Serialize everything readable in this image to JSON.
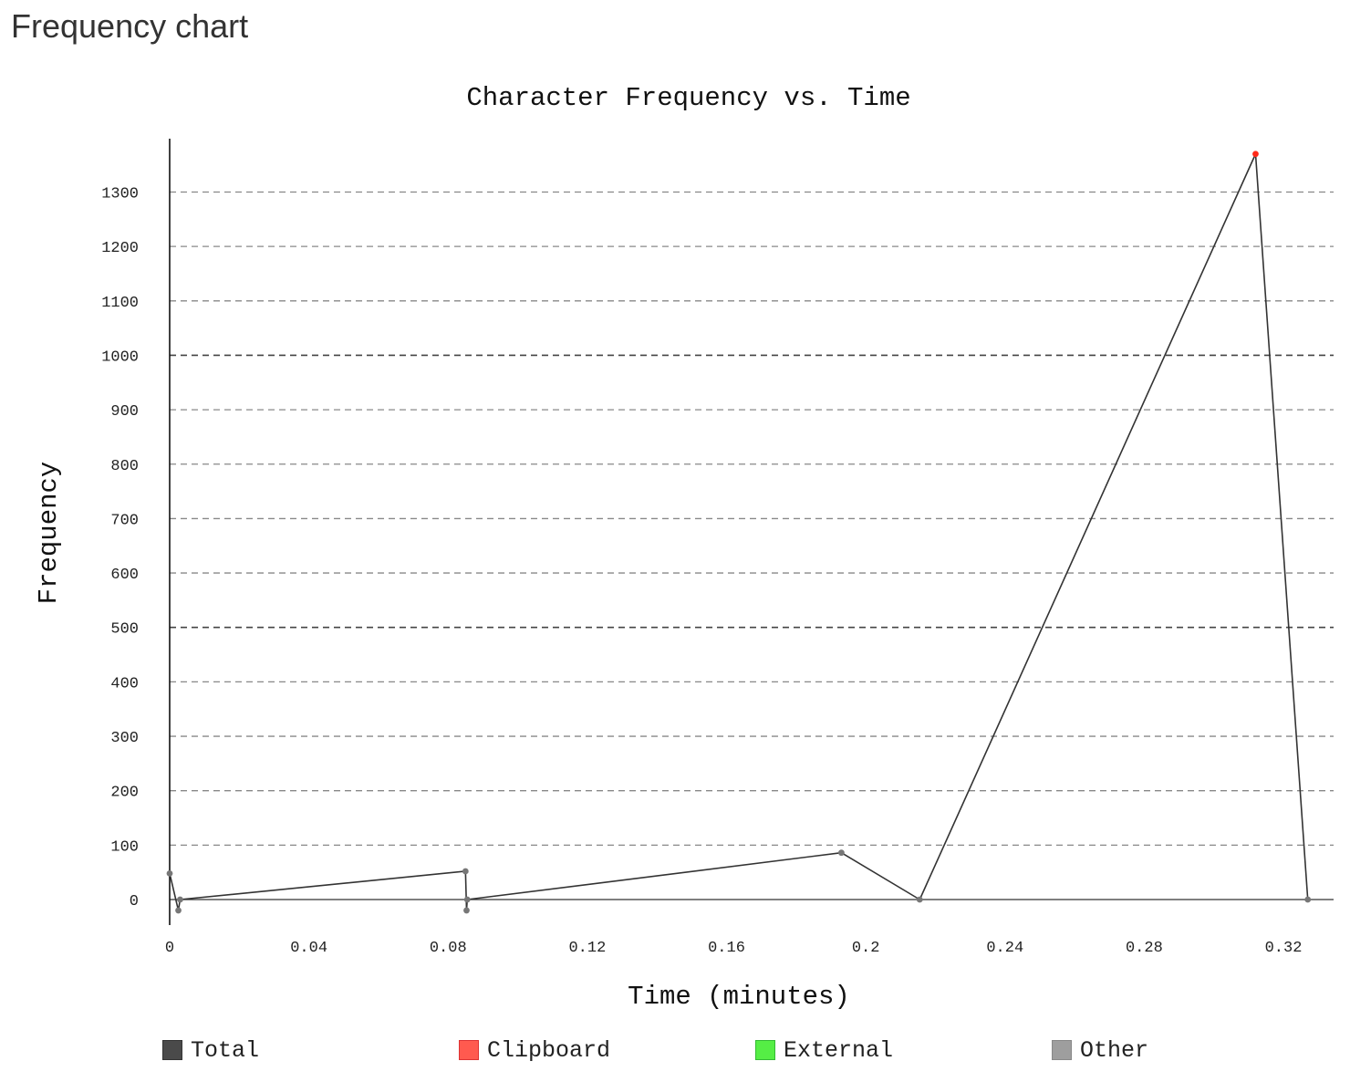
{
  "page": {
    "heading": "Frequency chart"
  },
  "chart_data": {
    "type": "line",
    "title": "Character Frequency vs. Time",
    "xlabel": "Time (minutes)",
    "ylabel": "Frequency",
    "xlim": [
      0,
      0.333
    ],
    "ylim": [
      -47,
      1400
    ],
    "x_ticks": [
      "0",
      "0.04",
      "0.08",
      "0.12",
      "0.16",
      "0.2",
      "0.24",
      "0.28",
      "0.32"
    ],
    "y_ticks": [
      "0",
      "100",
      "200",
      "300",
      "400",
      "500",
      "600",
      "700",
      "800",
      "900",
      "1000",
      "1100",
      "1200",
      "1300"
    ],
    "grid": true,
    "legend_position": "bottom",
    "series": [
      {
        "name": "Total",
        "color": "#333333",
        "points": [
          {
            "x": 0.0,
            "y": 48,
            "category": "Other"
          },
          {
            "x": 0.0025,
            "y": -20,
            "category": "Other"
          },
          {
            "x": 0.003,
            "y": 0,
            "category": "Other"
          },
          {
            "x": 0.085,
            "y": 52,
            "category": "Other"
          },
          {
            "x": 0.0853,
            "y": -20,
            "category": "Other"
          },
          {
            "x": 0.0855,
            "y": 0,
            "category": "Other"
          },
          {
            "x": 0.193,
            "y": 86,
            "category": "Other"
          },
          {
            "x": 0.2155,
            "y": 0,
            "category": "Other"
          },
          {
            "x": 0.312,
            "y": 1370,
            "category": "Clipboard"
          },
          {
            "x": 0.327,
            "y": 0,
            "category": "Other"
          }
        ]
      }
    ],
    "legend": [
      {
        "label": "Total",
        "color": "#4a4a4a"
      },
      {
        "label": "Clipboard",
        "color": "#ff5a4f"
      },
      {
        "label": "External",
        "color": "#55ee45"
      },
      {
        "label": "Other",
        "color": "#9e9e9e"
      }
    ],
    "point_colors": {
      "Other": "#777777",
      "Clipboard": "#ff2a1a"
    }
  }
}
